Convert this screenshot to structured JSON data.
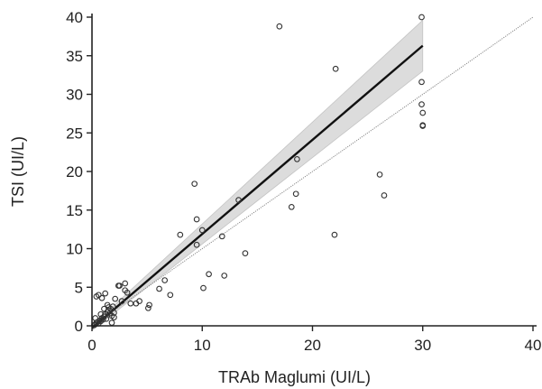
{
  "chart_data": {
    "type": "scatter",
    "title": "",
    "xlabel": "TRAb Maglumi (UI/L)",
    "ylabel": "TSI (UI/L)",
    "xlim": [
      0,
      40
    ],
    "ylim": [
      0,
      40
    ],
    "xticks": [
      0,
      10,
      20,
      30,
      40
    ],
    "yticks": [
      0,
      5,
      10,
      15,
      20,
      25,
      30,
      35,
      40
    ],
    "xtick_labels": [
      "0",
      "10",
      "20",
      "30",
      "40"
    ],
    "ytick_labels": [
      "0",
      "5",
      "10",
      "15",
      "20",
      "25",
      "30",
      "35",
      "40"
    ],
    "grid": false,
    "legend": "none",
    "colors": {
      "points": "#333333",
      "regression_line": "#111111",
      "confidence_band": "#dcdcdc",
      "identity_line": "#888888",
      "axis": "#222222"
    },
    "series": [
      {
        "kind": "points",
        "marker": "open-circle",
        "x": [
          0.2,
          0.3,
          0.4,
          0.5,
          0.6,
          0.7,
          0.8,
          0.9,
          1.0,
          1.1,
          1.2,
          1.3,
          1.4,
          1.5,
          1.6,
          1.7,
          1.8,
          1.9,
          2.0,
          0.3,
          0.6,
          0.9,
          1.2,
          1.5,
          1.8,
          2.1,
          2.4,
          2.7,
          3.0,
          0.4,
          0.8,
          1.1,
          1.4,
          2.0,
          2.5,
          3.0,
          3.2,
          3.5,
          4.0,
          4.3,
          5.1,
          5.2,
          6.1,
          6.6,
          7.1,
          8.0,
          9.3,
          9.5,
          9.5,
          10.0,
          10.1,
          10.6,
          11.8,
          12.0,
          13.3,
          13.9,
          17.0,
          18.1,
          18.5,
          18.6,
          22.0,
          22.1,
          26.1,
          26.5,
          29.9,
          29.9,
          29.9,
          30.0,
          30.0,
          30.0
        ],
        "y": [
          0.1,
          0.2,
          0.4,
          0.5,
          0.3,
          0.7,
          0.6,
          1.0,
          0.8,
          1.2,
          1.5,
          0.9,
          1.8,
          2.0,
          1.6,
          2.2,
          1.3,
          2.5,
          1.1,
          1.0,
          4.0,
          3.6,
          4.2,
          2.4,
          0.4,
          3.5,
          5.2,
          3.2,
          5.5,
          3.8,
          1.5,
          2.2,
          2.7,
          1.7,
          5.2,
          4.6,
          4.3,
          2.9,
          2.9,
          3.2,
          2.3,
          2.7,
          4.8,
          5.9,
          4.0,
          11.8,
          18.4,
          10.5,
          13.8,
          12.4,
          4.9,
          6.7,
          11.6,
          6.5,
          16.3,
          9.4,
          38.8,
          15.4,
          17.1,
          21.6,
          11.8,
          33.3,
          19.6,
          16.9,
          40.0,
          31.6,
          28.7,
          27.6,
          26.0,
          25.9
        ]
      },
      {
        "kind": "regression-line",
        "x": [
          0,
          30
        ],
        "y": [
          -0.3,
          36.3
        ]
      },
      {
        "kind": "confidence-band",
        "x": [
          0,
          30
        ],
        "lower": [
          -0.6,
          33.0
        ],
        "upper": [
          0.0,
          39.6
        ]
      },
      {
        "kind": "identity-line",
        "x": [
          0,
          40
        ],
        "y": [
          0,
          40
        ]
      }
    ]
  }
}
